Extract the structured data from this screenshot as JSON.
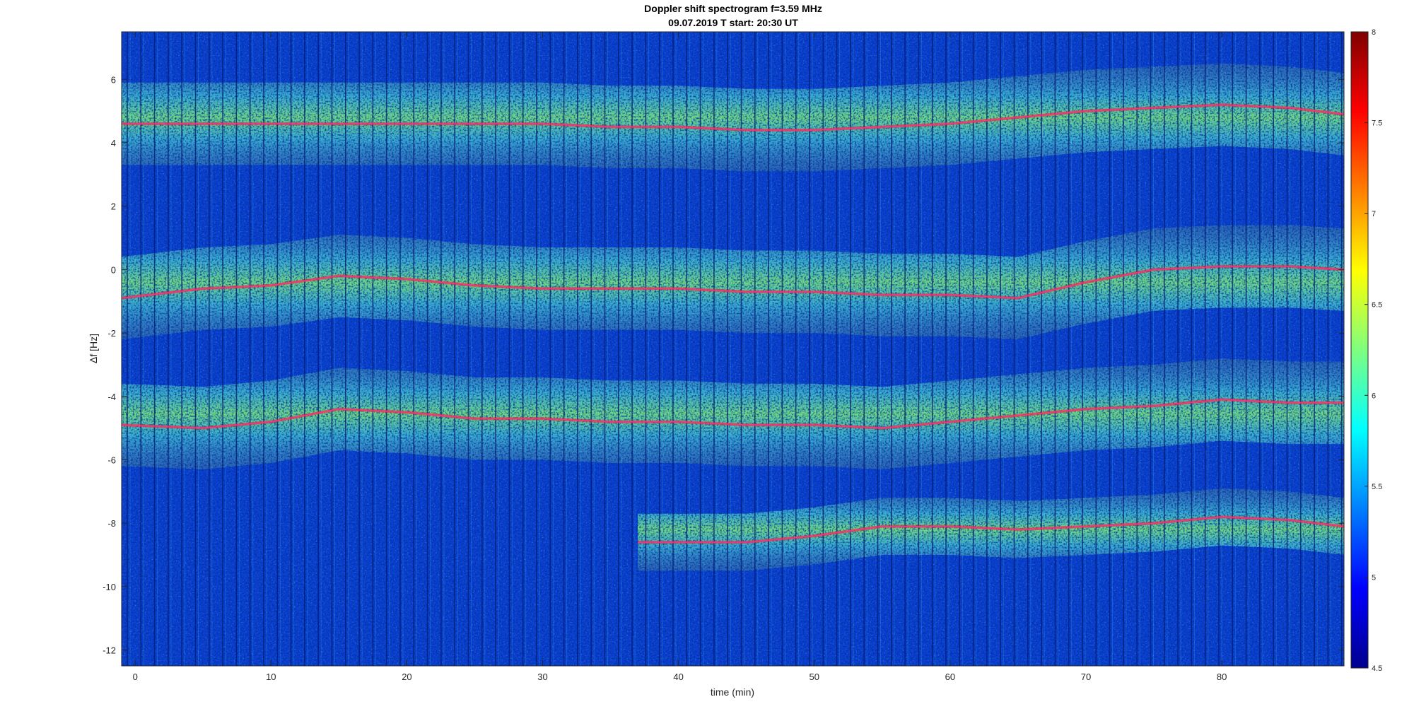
{
  "chart_data": {
    "type": "heatmap",
    "title": "Doppler shift spectrogram f=3.59 MHz",
    "subtitle": "09.07.2019   T start: 20:30 UT",
    "xlabel": "time (min)",
    "ylabel": "Δf [Hz]",
    "xlim": [
      -1,
      89
    ],
    "ylim": [
      -12.5,
      7.5
    ],
    "xticks": [
      "0",
      "10",
      "20",
      "30",
      "40",
      "50",
      "60",
      "70",
      "80"
    ],
    "xtick_values": [
      0,
      10,
      20,
      30,
      40,
      50,
      60,
      70,
      80
    ],
    "yticks": [
      "6",
      "4",
      "2",
      "0",
      "-2",
      "-4",
      "-6",
      "-8",
      "-10",
      "-12"
    ],
    "ytick_values": [
      6,
      4,
      2,
      0,
      -2,
      -4,
      -6,
      -8,
      -10,
      -12
    ],
    "colormap": "jet",
    "clim": [
      4.5,
      8
    ],
    "colorbar_ticks": [
      "8",
      "7.5",
      "7",
      "6.5",
      "6",
      "5.5",
      "5",
      "4.5"
    ],
    "colorbar_tick_values": [
      8,
      7.5,
      7,
      6.5,
      6,
      5.5,
      5,
      4.5
    ],
    "traces": [
      {
        "band": "upper",
        "t": [
          -1,
          5,
          10,
          15,
          20,
          25,
          30,
          35,
          40,
          45,
          50,
          55,
          60,
          65,
          70,
          75,
          80,
          85,
          89
        ],
        "df": [
          4.6,
          4.6,
          4.6,
          4.6,
          4.6,
          4.6,
          4.6,
          4.5,
          4.5,
          4.4,
          4.4,
          4.5,
          4.6,
          4.8,
          5.0,
          5.1,
          5.2,
          5.1,
          4.9
        ]
      },
      {
        "band": "middle",
        "t": [
          -1,
          5,
          10,
          15,
          20,
          25,
          30,
          35,
          40,
          45,
          50,
          55,
          60,
          65,
          70,
          75,
          80,
          85,
          89
        ],
        "df": [
          -0.9,
          -0.6,
          -0.5,
          -0.2,
          -0.3,
          -0.5,
          -0.6,
          -0.6,
          -0.6,
          -0.7,
          -0.7,
          -0.8,
          -0.8,
          -0.9,
          -0.4,
          0.0,
          0.1,
          0.1,
          0.0
        ]
      },
      {
        "band": "lower",
        "t": [
          -1,
          5,
          10,
          15,
          20,
          25,
          30,
          35,
          40,
          45,
          50,
          55,
          60,
          65,
          70,
          75,
          80,
          85,
          89
        ],
        "df": [
          -4.9,
          -5.0,
          -4.8,
          -4.4,
          -4.5,
          -4.7,
          -4.7,
          -4.8,
          -4.8,
          -4.9,
          -4.9,
          -5.0,
          -4.8,
          -4.6,
          -4.4,
          -4.3,
          -4.1,
          -4.2,
          -4.2
        ]
      },
      {
        "band": "bottom",
        "t": [
          37,
          40,
          45,
          50,
          55,
          60,
          65,
          70,
          75,
          80,
          85,
          89
        ],
        "df": [
          -8.6,
          -8.6,
          -8.6,
          -8.4,
          -8.1,
          -8.1,
          -8.2,
          -8.1,
          -8.0,
          -7.8,
          -7.9,
          -8.1
        ]
      }
    ],
    "colors": {
      "trace": "#ff2d8f",
      "background": "#ffffff",
      "axis": "#262626"
    }
  }
}
